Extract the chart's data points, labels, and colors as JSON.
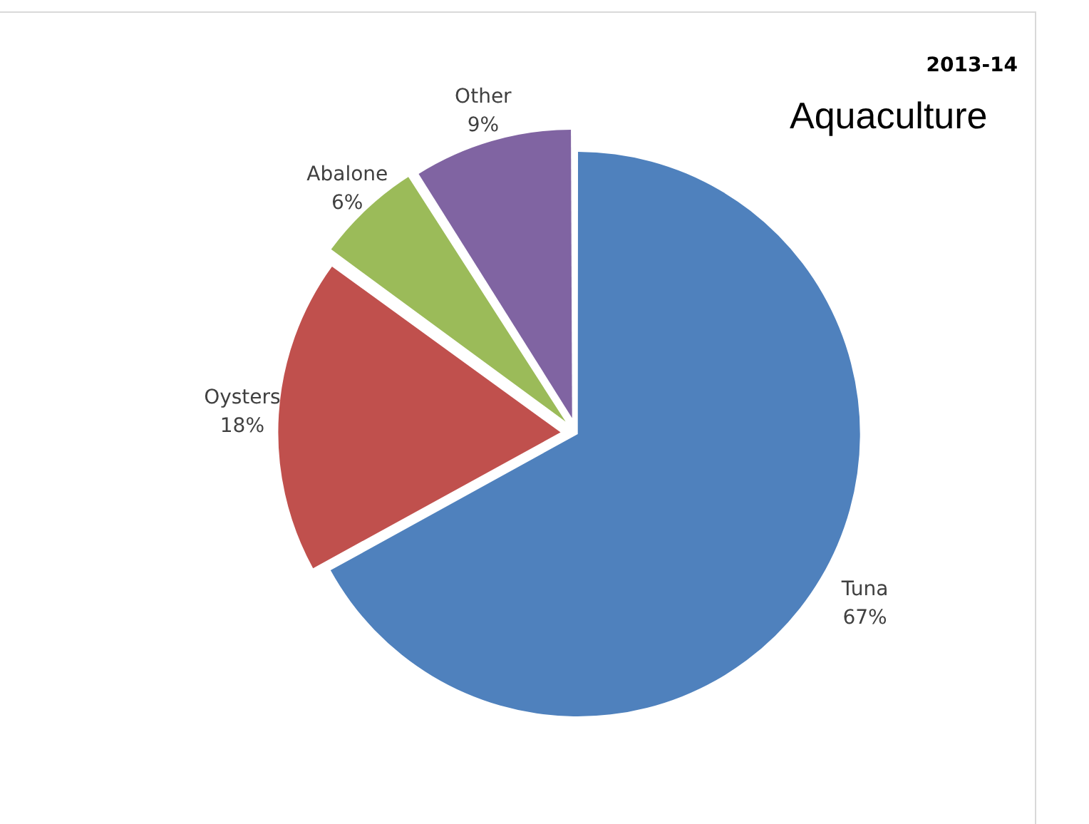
{
  "chart_data": {
    "type": "pie",
    "title": "2013-14",
    "subtitle": "Aquaculture",
    "categories": [
      "Tuna",
      "Oysters",
      "Abalone",
      "Other"
    ],
    "values": [
      67,
      18,
      6,
      9
    ],
    "colors": [
      "#4f81bd",
      "#c0504d",
      "#9bbb59",
      "#8064a2"
    ],
    "value_labels": [
      "67%",
      "18%",
      "6%",
      "9%"
    ],
    "legend": false
  }
}
